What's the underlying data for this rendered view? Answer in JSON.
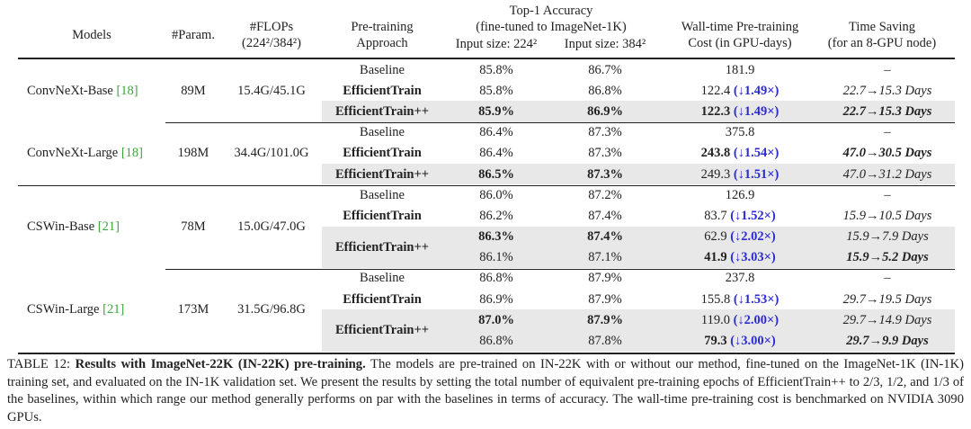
{
  "header": {
    "models": "Models",
    "params": "#Param.",
    "flops_1": "#FLOPs",
    "flops_2": "(224²/384²)",
    "approach_1": "Pre-training",
    "approach_2": "Approach",
    "acc_1": "Top-1 Accuracy",
    "acc_2": "(fine-tuned to ImageNet-1K)",
    "acc_224": "Input size: 224²",
    "acc_384": "Input size: 384²",
    "cost_1": "Wall-time Pre-training",
    "cost_2": "Cost (in GPU-days)",
    "saving_1": "Time Saving",
    "saving_2": "(for an 8-GPU node)"
  },
  "colors": {
    "ref": "#3aa63a",
    "speedup": "#2b2bd6",
    "highlight": "#e8e8e8"
  },
  "groups": [
    {
      "model": "ConvNeXt-Base",
      "ref": "18",
      "params": "89M",
      "flops": "15.4G/45.1G",
      "rows": [
        {
          "approach": "Baseline",
          "acc224": "85.8%",
          "acc384": "86.7%",
          "cost": "181.9",
          "speedup": "",
          "saving": "–"
        },
        {
          "approach": "EfficientTrain",
          "acc224": "85.8%",
          "acc384": "86.8%",
          "cost": "122.4",
          "speedup": "(↓1.49×)",
          "saving": "22.7→15.3 Days"
        },
        {
          "approach": "EfficientTrain++",
          "highlight": true,
          "acc224": "85.9%",
          "acc224_bold": true,
          "acc384": "86.9%",
          "acc384_bold": true,
          "cost": "122.3",
          "cost_bold": true,
          "speedup": "(↓1.49×)",
          "saving": "22.7→15.3 Days",
          "saving_bold": true
        }
      ]
    },
    {
      "model": "ConvNeXt-Large",
      "ref": "18",
      "params": "198M",
      "flops": "34.4G/101.0G",
      "rows": [
        {
          "approach": "Baseline",
          "acc224": "86.4%",
          "acc384": "87.3%",
          "cost": "375.8",
          "speedup": "",
          "saving": "–"
        },
        {
          "approach": "EfficientTrain",
          "acc224": "86.4%",
          "acc384": "87.3%",
          "cost": "243.8",
          "cost_bold": true,
          "speedup": "(↓1.54×)",
          "saving": "47.0→30.5 Days",
          "saving_bold": true
        },
        {
          "approach": "EfficientTrain++",
          "highlight": true,
          "acc224": "86.5%",
          "acc224_bold": true,
          "acc384": "87.3%",
          "acc384_bold": true,
          "cost": "249.3",
          "speedup": "(↓1.51×)",
          "saving": "47.0→31.2 Days"
        }
      ]
    },
    {
      "model": "CSWin-Base",
      "ref": "21",
      "params": "78M",
      "flops": "15.0G/47.0G",
      "rows": [
        {
          "approach": "Baseline",
          "acc224": "86.0%",
          "acc384": "87.2%",
          "cost": "126.9",
          "speedup": "",
          "saving": "–"
        },
        {
          "approach": "EfficientTrain",
          "acc224": "86.2%",
          "acc384": "87.4%",
          "cost": "83.7",
          "speedup": "(↓1.52×)",
          "saving": "15.9→10.5 Days"
        },
        {
          "approach": "EfficientTrain++",
          "approach_span": 2,
          "highlight": true,
          "acc224": "86.3%",
          "acc224_bold": true,
          "acc384": "87.4%",
          "acc384_bold": true,
          "cost": "62.9",
          "speedup": "(↓2.02×)",
          "saving": "15.9→7.9 Days"
        },
        {
          "highlight": true,
          "acc224": "86.1%",
          "acc384": "87.1%",
          "cost": "41.9",
          "cost_bold": true,
          "speedup": "(↓3.03×)",
          "saving": "15.9→5.2 Days",
          "saving_bold": true
        }
      ]
    },
    {
      "model": "CSWin-Large",
      "ref": "21",
      "params": "173M",
      "flops": "31.5G/96.8G",
      "rows": [
        {
          "approach": "Baseline",
          "acc224": "86.8%",
          "acc384": "87.9%",
          "cost": "237.8",
          "speedup": "",
          "saving": "–"
        },
        {
          "approach": "EfficientTrain",
          "acc224": "86.9%",
          "acc384": "87.9%",
          "cost": "155.8",
          "speedup": "(↓1.53×)",
          "saving": "29.7→19.5 Days"
        },
        {
          "approach": "EfficientTrain++",
          "approach_span": 2,
          "highlight": true,
          "acc224": "87.0%",
          "acc224_bold": true,
          "acc384": "87.9%",
          "acc384_bold": true,
          "cost": "119.0",
          "speedup": "(↓2.00×)",
          "saving": "29.7→14.9 Days"
        },
        {
          "highlight": true,
          "acc224": "86.8%",
          "acc384": "87.8%",
          "cost": "79.3",
          "cost_bold": true,
          "speedup": "(↓3.00×)",
          "saving": "29.7→9.9 Days",
          "saving_bold": true
        }
      ]
    }
  ],
  "caption": {
    "label": "TABLE 12:",
    "title": "Results with ImageNet-22K (IN-22K) pre-training.",
    "text": "The models are pre-trained on IN-22K with or without our method, fine-tuned on the ImageNet-1K (IN-1K) training set, and evaluated on the IN-1K validation set. We present the results by setting the total number of equivalent pre-training epochs of EfficientTrain++ to 2/3, 1/2, and 1/3 of the baselines, within which range our method generally performs on par with the baselines in terms of accuracy. The wall-time pre-training cost is benchmarked on NVIDIA 3090 GPUs."
  }
}
